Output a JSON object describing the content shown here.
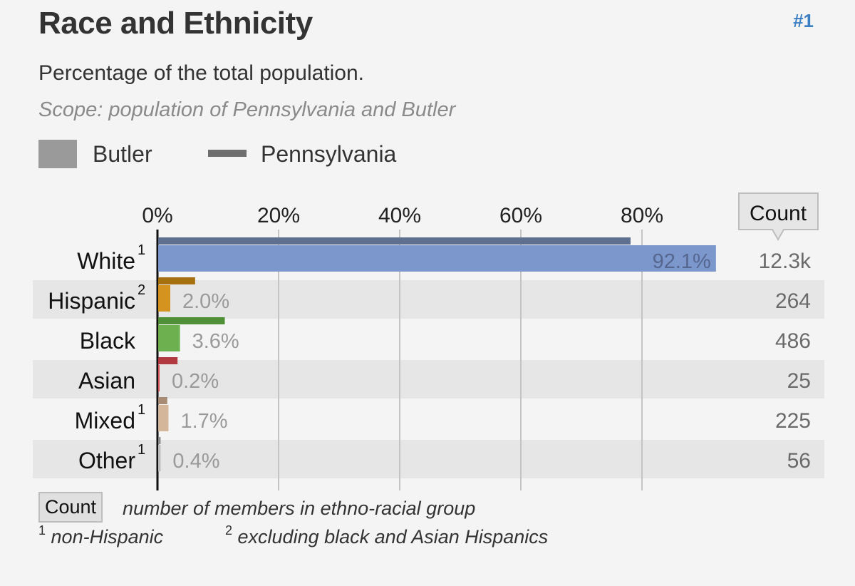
{
  "header": {
    "title": "Race and Ethnicity",
    "rank": "#1",
    "subtitle": "Percentage of the total population.",
    "scope": "Scope: population of Pennsylvania and Butler"
  },
  "legend": {
    "primary": "Butler",
    "secondary": "Pennsylvania"
  },
  "count_header": "Count",
  "notes": {
    "count_box": "Count",
    "count_desc": "number of members in ethno-racial group",
    "fn1_marker": "1",
    "fn1_text": "non-Hispanic",
    "fn2_marker": "2",
    "fn2_text": "excluding black and Asian Hispanics"
  },
  "colors": {
    "White": {
      "butler": "#7b97cc",
      "pa": "#5f6f8f"
    },
    "Hispanic": {
      "butler": "#d4921e",
      "pa": "#a6700f"
    },
    "Black": {
      "butler": "#6db050",
      "pa": "#4f9036"
    },
    "Asian": {
      "butler": "#d35555",
      "pa": "#b03a3f"
    },
    "Mixed": {
      "butler": "#d4b79a",
      "pa": "#a78b74"
    },
    "Other": {
      "butler": "#bcbcbc",
      "pa": "#8a8a8a"
    }
  },
  "chart_data": {
    "type": "bar",
    "orientation": "horizontal",
    "title": "Race and Ethnicity",
    "xlabel": "Percentage of the total population",
    "xlim": [
      0,
      100
    ],
    "ticks": [
      "0%",
      "20%",
      "40%",
      "60%",
      "80%"
    ],
    "tick_values": [
      0,
      20,
      40,
      60,
      80
    ],
    "categories": [
      "White",
      "Hispanic",
      "Black",
      "Asian",
      "Mixed",
      "Other"
    ],
    "superscripts": [
      "1",
      "2",
      "",
      "",
      "1",
      "1"
    ],
    "series": [
      {
        "name": "Butler",
        "values": [
          92.1,
          2.0,
          3.6,
          0.2,
          1.7,
          0.4
        ],
        "labels": [
          "92.1%",
          "2.0%",
          "3.6%",
          "0.2%",
          "1.7%",
          "0.4%"
        ]
      },
      {
        "name": "Pennsylvania",
        "values": [
          78,
          6.1,
          11,
          3.2,
          1.5,
          0.4
        ]
      }
    ],
    "counts": [
      "12.3k",
      "264",
      "486",
      "25",
      "225",
      "56"
    ]
  }
}
